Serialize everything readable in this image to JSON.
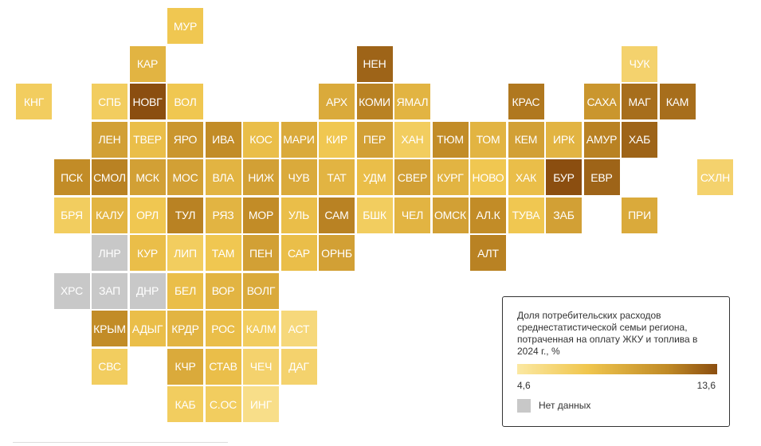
{
  "regions": [
    {
      "label": "МУР",
      "row": 0,
      "col": 4,
      "value": 7.5
    },
    {
      "label": "КАР",
      "row": 1,
      "col": 3,
      "value": 8.5
    },
    {
      "label": "НЕН",
      "row": 1,
      "col": 9,
      "value": 12.5
    },
    {
      "label": "ЧУК",
      "row": 1,
      "col": 16,
      "value": 6.5
    },
    {
      "label": "КНГ",
      "row": 2,
      "col": 0,
      "value": 7.0
    },
    {
      "label": "СПБ",
      "row": 2,
      "col": 2,
      "value": 7.0
    },
    {
      "label": "НОВГ",
      "row": 2,
      "col": 3,
      "value": 13.6
    },
    {
      "label": "ВОЛ",
      "row": 2,
      "col": 4,
      "value": 7.5
    },
    {
      "label": "АРХ",
      "row": 2,
      "col": 8,
      "value": 9.0
    },
    {
      "label": "КОМИ",
      "row": 2,
      "col": 9,
      "value": 11.0
    },
    {
      "label": "ЯМАЛ",
      "row": 2,
      "col": 10,
      "value": 8.5
    },
    {
      "label": "КРАС",
      "row": 2,
      "col": 13,
      "value": 11.5
    },
    {
      "label": "САХА",
      "row": 2,
      "col": 15,
      "value": 10.0
    },
    {
      "label": "МАГ",
      "row": 2,
      "col": 16,
      "value": 12.0
    },
    {
      "label": "КАМ",
      "row": 2,
      "col": 17,
      "value": 12.0
    },
    {
      "label": "ЛЕН",
      "row": 3,
      "col": 2,
      "value": 9.5
    },
    {
      "label": "ТВЕР",
      "row": 3,
      "col": 3,
      "value": 8.0
    },
    {
      "label": "ЯРО",
      "row": 3,
      "col": 4,
      "value": 10.0
    },
    {
      "label": "ИВА",
      "row": 3,
      "col": 5,
      "value": 10.5
    },
    {
      "label": "КОС",
      "row": 3,
      "col": 6,
      "value": 8.0
    },
    {
      "label": "МАРИ",
      "row": 3,
      "col": 7,
      "value": 9.0
    },
    {
      "label": "КИР",
      "row": 3,
      "col": 8,
      "value": 7.5
    },
    {
      "label": "ПЕР",
      "row": 3,
      "col": 9,
      "value": 9.5
    },
    {
      "label": "ХАН",
      "row": 3,
      "col": 10,
      "value": 7.0
    },
    {
      "label": "ТЮМ",
      "row": 3,
      "col": 11,
      "value": 10.5
    },
    {
      "label": "ТОМ",
      "row": 3,
      "col": 12,
      "value": 8.5
    },
    {
      "label": "КЕМ",
      "row": 3,
      "col": 13,
      "value": 9.5
    },
    {
      "label": "ИРК",
      "row": 3,
      "col": 14,
      "value": 8.5
    },
    {
      "label": "АМУР",
      "row": 3,
      "col": 15,
      "value": 11.0
    },
    {
      "label": "ХАБ",
      "row": 3,
      "col": 16,
      "value": 12.5
    },
    {
      "label": "ПСК",
      "row": 4,
      "col": 1,
      "value": 10.5
    },
    {
      "label": "СМОЛ",
      "row": 4,
      "col": 2,
      "value": 11.0
    },
    {
      "label": "МСК",
      "row": 4,
      "col": 3,
      "value": 9.5
    },
    {
      "label": "МОС",
      "row": 4,
      "col": 4,
      "value": 9.5
    },
    {
      "label": "ВЛА",
      "row": 4,
      "col": 5,
      "value": 8.5
    },
    {
      "label": "НИЖ",
      "row": 4,
      "col": 6,
      "value": 9.5
    },
    {
      "label": "ЧУВ",
      "row": 4,
      "col": 7,
      "value": 9.0
    },
    {
      "label": "ТАТ",
      "row": 4,
      "col": 8,
      "value": 8.5
    },
    {
      "label": "УДМ",
      "row": 4,
      "col": 9,
      "value": 8.0
    },
    {
      "label": "СВЕР",
      "row": 4,
      "col": 10,
      "value": 9.5
    },
    {
      "label": "КУРГ",
      "row": 4,
      "col": 11,
      "value": 8.5
    },
    {
      "label": "НОВО",
      "row": 4,
      "col": 12,
      "value": 7.5
    },
    {
      "label": "ХАК",
      "row": 4,
      "col": 13,
      "value": 8.0
    },
    {
      "label": "БУР",
      "row": 4,
      "col": 14,
      "value": 13.6
    },
    {
      "label": "ЕВР",
      "row": 4,
      "col": 15,
      "value": 12.5
    },
    {
      "label": "СХЛН",
      "row": 4,
      "col": 18,
      "value": 6.5
    },
    {
      "label": "БРЯ",
      "row": 5,
      "col": 1,
      "value": 7.0
    },
    {
      "label": "КАЛУ",
      "row": 5,
      "col": 2,
      "value": 8.5
    },
    {
      "label": "ОРЛ",
      "row": 5,
      "col": 3,
      "value": 7.5
    },
    {
      "label": "ТУЛ",
      "row": 5,
      "col": 4,
      "value": 11.0
    },
    {
      "label": "РЯЗ",
      "row": 5,
      "col": 5,
      "value": 8.5
    },
    {
      "label": "МОР",
      "row": 5,
      "col": 6,
      "value": 10.5
    },
    {
      "label": "УЛЬ",
      "row": 5,
      "col": 7,
      "value": 8.0
    },
    {
      "label": "САМ",
      "row": 5,
      "col": 8,
      "value": 11.0
    },
    {
      "label": "БШК",
      "row": 5,
      "col": 9,
      "value": 7.0
    },
    {
      "label": "ЧЕЛ",
      "row": 5,
      "col": 10,
      "value": 8.5
    },
    {
      "label": "ОМСК",
      "row": 5,
      "col": 11,
      "value": 9.5
    },
    {
      "label": "АЛ.К",
      "row": 5,
      "col": 12,
      "value": 10.5
    },
    {
      "label": "ТУВА",
      "row": 5,
      "col": 13,
      "value": 7.5
    },
    {
      "label": "ЗАБ",
      "row": 5,
      "col": 14,
      "value": 9.5
    },
    {
      "label": "ПРИ",
      "row": 5,
      "col": 16,
      "value": 9.0
    },
    {
      "label": "ЛНР",
      "row": 6,
      "col": 2,
      "value": null
    },
    {
      "label": "КУР",
      "row": 6,
      "col": 3,
      "value": 8.0
    },
    {
      "label": "ЛИП",
      "row": 6,
      "col": 4,
      "value": 7.0
    },
    {
      "label": "ТАМ",
      "row": 6,
      "col": 5,
      "value": 7.5
    },
    {
      "label": "ПЕН",
      "row": 6,
      "col": 6,
      "value": 9.5
    },
    {
      "label": "САР",
      "row": 6,
      "col": 7,
      "value": 8.0
    },
    {
      "label": "ОРНБ",
      "row": 6,
      "col": 8,
      "value": 9.5
    },
    {
      "label": "АЛТ",
      "row": 6,
      "col": 12,
      "value": 11.0
    },
    {
      "label": "ХРС",
      "row": 7,
      "col": 1,
      "value": null
    },
    {
      "label": "ЗАП",
      "row": 7,
      "col": 2,
      "value": null
    },
    {
      "label": "ДНР",
      "row": 7,
      "col": 3,
      "value": null
    },
    {
      "label": "БЕЛ",
      "row": 7,
      "col": 4,
      "value": 8.0
    },
    {
      "label": "ВОР",
      "row": 7,
      "col": 5,
      "value": 8.5
    },
    {
      "label": "ВОЛГ",
      "row": 7,
      "col": 6,
      "value": 9.0
    },
    {
      "label": "КРЫМ",
      "row": 8,
      "col": 2,
      "value": 10.5
    },
    {
      "label": "АДЫГ",
      "row": 8,
      "col": 3,
      "value": 8.0
    },
    {
      "label": "КРДР",
      "row": 8,
      "col": 4,
      "value": 8.5
    },
    {
      "label": "РОС",
      "row": 8,
      "col": 5,
      "value": 8.0
    },
    {
      "label": "КАЛМ",
      "row": 8,
      "col": 6,
      "value": 7.0
    },
    {
      "label": "АСТ",
      "row": 8,
      "col": 7,
      "value": 6.0
    },
    {
      "label": "СВС",
      "row": 9,
      "col": 2,
      "value": 7.0
    },
    {
      "label": "КЧР",
      "row": 9,
      "col": 4,
      "value": 9.0
    },
    {
      "label": "СТАВ",
      "row": 9,
      "col": 5,
      "value": 8.0
    },
    {
      "label": "ЧЕЧ",
      "row": 9,
      "col": 6,
      "value": 6.5
    },
    {
      "label": "ДАГ",
      "row": 9,
      "col": 7,
      "value": 6.5
    },
    {
      "label": "КАБ",
      "row": 10,
      "col": 4,
      "value": 7.0
    },
    {
      "label": "С.ОС",
      "row": 10,
      "col": 5,
      "value": 7.0
    },
    {
      "label": "ИНГ",
      "row": 10,
      "col": 6,
      "value": 5.5
    }
  ],
  "legend": {
    "title": "Доля потребительских расходов среднестатистической семьи региона, потраченная на оплату ЖКУ и топлива в 2024 г., %",
    "min_label": "4,6",
    "max_label": "13,6",
    "min_value": 4.6,
    "max_value": 13.6,
    "no_data_label": "Нет данных"
  },
  "colors": {
    "scale": [
      "#fbe8a2",
      "#f0c64e",
      "#c08a26",
      "#8b4e10"
    ],
    "no_data": "#c8c8c8",
    "label": "#ffffff"
  }
}
